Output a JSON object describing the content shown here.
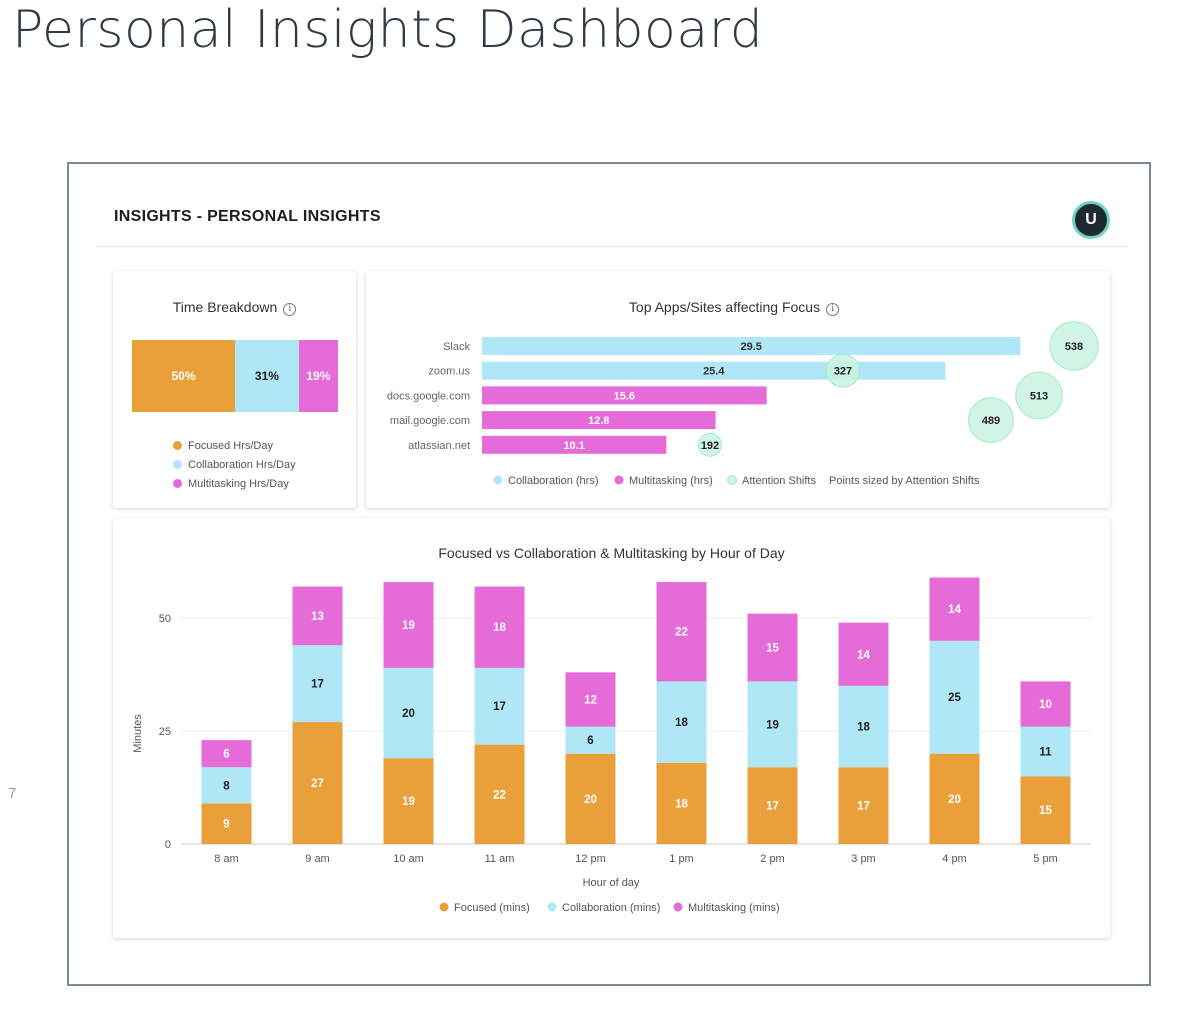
{
  "slide": {
    "title": "Personal Insights Dashboard",
    "page_number": "7"
  },
  "header": {
    "title": "INSIGHTS - PERSONAL INSIGHTS",
    "avatar_initial": "U"
  },
  "colors": {
    "focused": "#e9a03b",
    "collaboration": "#b0e7f6",
    "multitasking": "#e56bd8",
    "attention": "#c9f3df"
  },
  "time_breakdown": {
    "title": "Time Breakdown",
    "info_icon": "info-icon",
    "segments": [
      {
        "name": "Focused Hrs/Day",
        "percent": 50,
        "label": "50%"
      },
      {
        "name": "Collaboration Hrs/Day",
        "percent": 31,
        "label": "31%"
      },
      {
        "name": "Multitasking Hrs/Day",
        "percent": 19,
        "label": "19%"
      }
    ],
    "legend": [
      "Focused Hrs/Day",
      "Collaboration Hrs/Day",
      "Multitasking Hrs/Day"
    ]
  },
  "chart_data": [
    {
      "type": "bar",
      "title": "Top Apps/Sites affecting Focus",
      "orientation": "horizontal",
      "categories": [
        "Slack",
        "zoom.us",
        "docs.google.com",
        "mail.google.com",
        "atlassian.net"
      ],
      "bars": [
        {
          "value": 29.5,
          "label": "29.5",
          "series": "collaboration"
        },
        {
          "value": 25.4,
          "label": "25.4",
          "series": "collaboration"
        },
        {
          "value": 15.6,
          "label": "15.6",
          "series": "multitasking"
        },
        {
          "value": 12.8,
          "label": "12.8",
          "series": "multitasking"
        },
        {
          "value": 10.1,
          "label": "10.1",
          "series": "multitasking"
        }
      ],
      "attention_shifts": [
        538,
        327,
        513,
        489,
        192
      ],
      "xlim": [
        0,
        32
      ],
      "legend": [
        "Collaboration (hrs)",
        "Multitasking (hrs)",
        "Attention Shifts"
      ],
      "legend_note": "Points sized by Attention Shifts"
    },
    {
      "type": "bar",
      "stacked": true,
      "title": "Focused vs Collaboration & Multitasking by Hour of Day",
      "xlabel": "Hour of day",
      "ylabel": "Minutes",
      "ylim": [
        0,
        60
      ],
      "yticks": [
        0,
        25,
        50
      ],
      "categories": [
        "8 am",
        "9 am",
        "10 am",
        "11 am",
        "12 pm",
        "1 pm",
        "2 pm",
        "3 pm",
        "4 pm",
        "5 pm"
      ],
      "series": [
        {
          "name": "Focused (mins)",
          "key": "focused",
          "values": [
            9,
            27,
            19,
            22,
            20,
            18,
            17,
            17,
            20,
            15
          ]
        },
        {
          "name": "Collaboration (mins)",
          "key": "collaboration",
          "values": [
            8,
            17,
            20,
            17,
            6,
            18,
            19,
            18,
            25,
            11
          ]
        },
        {
          "name": "Multitasking (mins)",
          "key": "multitasking",
          "values": [
            6,
            13,
            19,
            18,
            12,
            22,
            15,
            14,
            14,
            10
          ]
        }
      ]
    }
  ]
}
